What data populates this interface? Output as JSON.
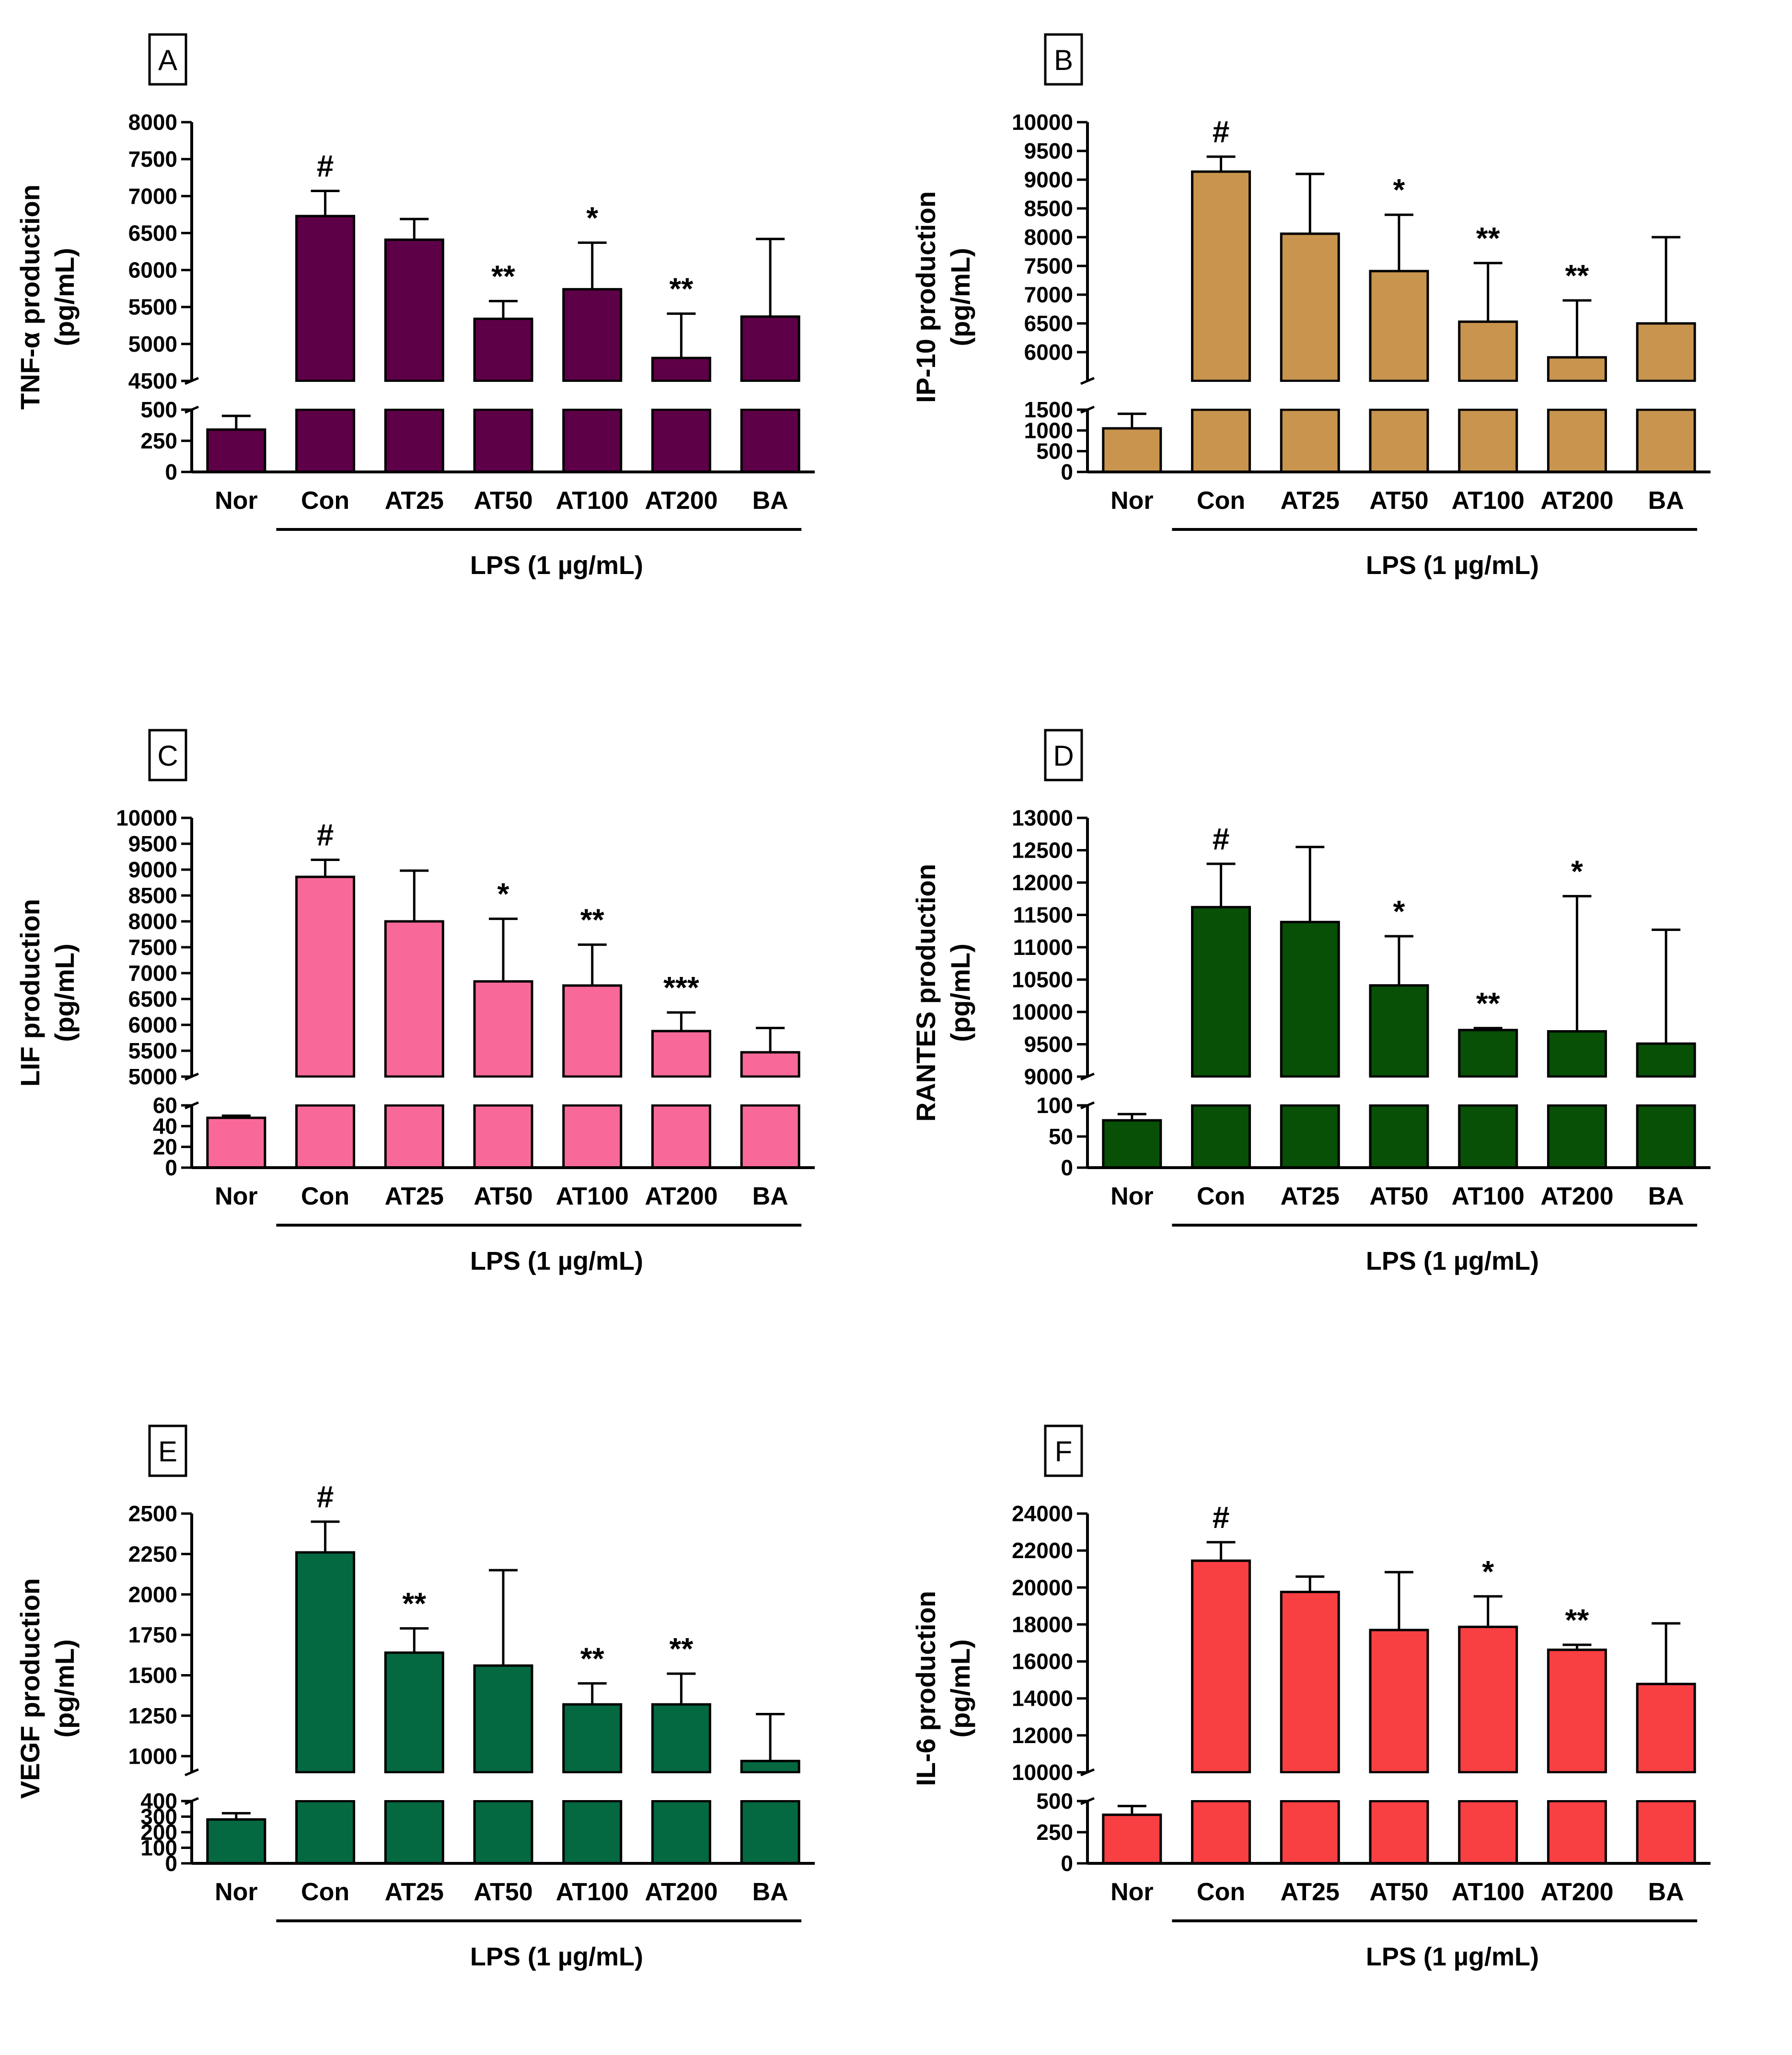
{
  "x_group_label": "LPS (1 µg/mL)",
  "chart_data": [
    {
      "type": "bar",
      "panel_letter": "A",
      "color": "#5e0048",
      "ylabel": [
        "TNF-α production",
        "(pg/mL)"
      ],
      "categories": [
        "Nor",
        "Con",
        "AT25",
        "AT50",
        "AT100",
        "AT200",
        "BA"
      ],
      "values": [
        340,
        6730,
        6410,
        5340,
        5740,
        4810,
        5370
      ],
      "errors": [
        110,
        340,
        280,
        240,
        630,
        600,
        1050
      ],
      "significance": [
        "",
        "#",
        "",
        "**",
        "*",
        "**",
        ""
      ],
      "axis_break": {
        "lower": [
          0,
          500
        ],
        "upper": [
          4500,
          8000
        ]
      },
      "lower_ticks": [
        "0",
        "250",
        "500"
      ],
      "upper_ticks": [
        "4500",
        "5000",
        "5500",
        "6000",
        "6500",
        "7000",
        "7500",
        "8000"
      ]
    },
    {
      "type": "bar",
      "panel_letter": "B",
      "color": "#c8944e",
      "ylabel": [
        "IP-10 production",
        "(pg/mL)"
      ],
      "categories": [
        "Nor",
        "Con",
        "AT25",
        "AT50",
        "AT100",
        "AT200",
        "BA"
      ],
      "values": [
        1050,
        9140,
        8060,
        7410,
        6530,
        5910,
        6500
      ],
      "errors": [
        350,
        260,
        1040,
        980,
        1020,
        990,
        1500
      ],
      "significance": [
        "",
        "#",
        "",
        "*",
        "**",
        "**",
        ""
      ],
      "axis_break": {
        "lower": [
          0,
          1500
        ],
        "upper": [
          5500,
          10000
        ]
      },
      "lower_ticks": [
        "0",
        "500",
        "1000",
        "1500"
      ],
      "upper_ticks": [
        "6000",
        "6500",
        "7000",
        "7500",
        "8000",
        "8500",
        "9000",
        "9500",
        "10000"
      ]
    },
    {
      "type": "bar",
      "panel_letter": "C",
      "color": "#f8699a",
      "ylabel": [
        "LIF production",
        "(pg/mL)"
      ],
      "categories": [
        "Nor",
        "Con",
        "AT25",
        "AT50",
        "AT100",
        "AT200",
        "BA"
      ],
      "values": [
        48,
        8860,
        8000,
        6840,
        6760,
        5880,
        5470
      ],
      "errors": [
        2,
        330,
        980,
        1210,
        790,
        360,
        470
      ],
      "significance": [
        "",
        "#",
        "",
        "*",
        "**",
        "***",
        ""
      ],
      "axis_break": {
        "lower": [
          0,
          60
        ],
        "upper": [
          5000,
          10000
        ]
      },
      "lower_ticks": [
        "0",
        "20",
        "40",
        "60"
      ],
      "upper_ticks": [
        "5000",
        "5500",
        "6000",
        "6500",
        "7000",
        "7500",
        "8000",
        "8500",
        "9000",
        "9500",
        "10000"
      ]
    },
    {
      "type": "bar",
      "panel_letter": "D",
      "color": "#075006",
      "ylabel": [
        "RANTES production",
        "(pg/mL)"
      ],
      "categories": [
        "Nor",
        "Con",
        "AT25",
        "AT50",
        "AT100",
        "AT200",
        "BA"
      ],
      "values": [
        76,
        11620,
        11390,
        10410,
        9720,
        9700,
        9510
      ],
      "errors": [
        10,
        670,
        1160,
        760,
        30,
        2090,
        1760
      ],
      "significance": [
        "",
        "#",
        "",
        "*",
        "**",
        "*",
        ""
      ],
      "axis_break": {
        "lower": [
          0,
          100
        ],
        "upper": [
          9000,
          13000
        ]
      },
      "lower_ticks": [
        "0",
        "50",
        "100"
      ],
      "upper_ticks": [
        "9000",
        "9500",
        "10000",
        "10500",
        "11000",
        "11500",
        "12000",
        "12500",
        "13000"
      ]
    },
    {
      "type": "bar",
      "panel_letter": "E",
      "color": "#046841",
      "ylabel": [
        "VEGF production",
        "(pg/mL)"
      ],
      "categories": [
        "Nor",
        "Con",
        "AT25",
        "AT50",
        "AT100",
        "AT200",
        "BA"
      ],
      "values": [
        282,
        2260,
        1640,
        1560,
        1320,
        1320,
        970
      ],
      "errors": [
        40,
        190,
        150,
        590,
        130,
        190,
        290
      ],
      "significance": [
        "",
        "#",
        "**",
        "",
        "**",
        "**",
        ""
      ],
      "axis_break": {
        "lower": [
          0,
          400
        ],
        "upper": [
          900,
          2500
        ]
      },
      "lower_ticks": [
        "0",
        "100",
        "200",
        "300",
        "400"
      ],
      "upper_ticks": [
        "1000",
        "1250",
        "1500",
        "1750",
        "2000",
        "2250",
        "2500"
      ]
    },
    {
      "type": "bar",
      "panel_letter": "F",
      "color": "#f83f41",
      "ylabel": [
        "IL-6 production",
        "(pg/mL)"
      ],
      "categories": [
        "Nor",
        "Con",
        "AT25",
        "AT50",
        "AT100",
        "AT200",
        "BA"
      ],
      "values": [
        390,
        21450,
        19760,
        17700,
        17870,
        16630,
        14780
      ],
      "errors": [
        70,
        1000,
        830,
        3130,
        1650,
        270,
        3280
      ],
      "significance": [
        "",
        "#",
        "",
        "",
        "*",
        "**",
        ""
      ],
      "axis_break": {
        "lower": [
          0,
          500
        ],
        "upper": [
          10000,
          24000
        ]
      },
      "lower_ticks": [
        "0",
        "250",
        "500"
      ],
      "upper_ticks": [
        "10000",
        "12000",
        "14000",
        "16000",
        "18000",
        "20000",
        "22000",
        "24000"
      ]
    }
  ]
}
